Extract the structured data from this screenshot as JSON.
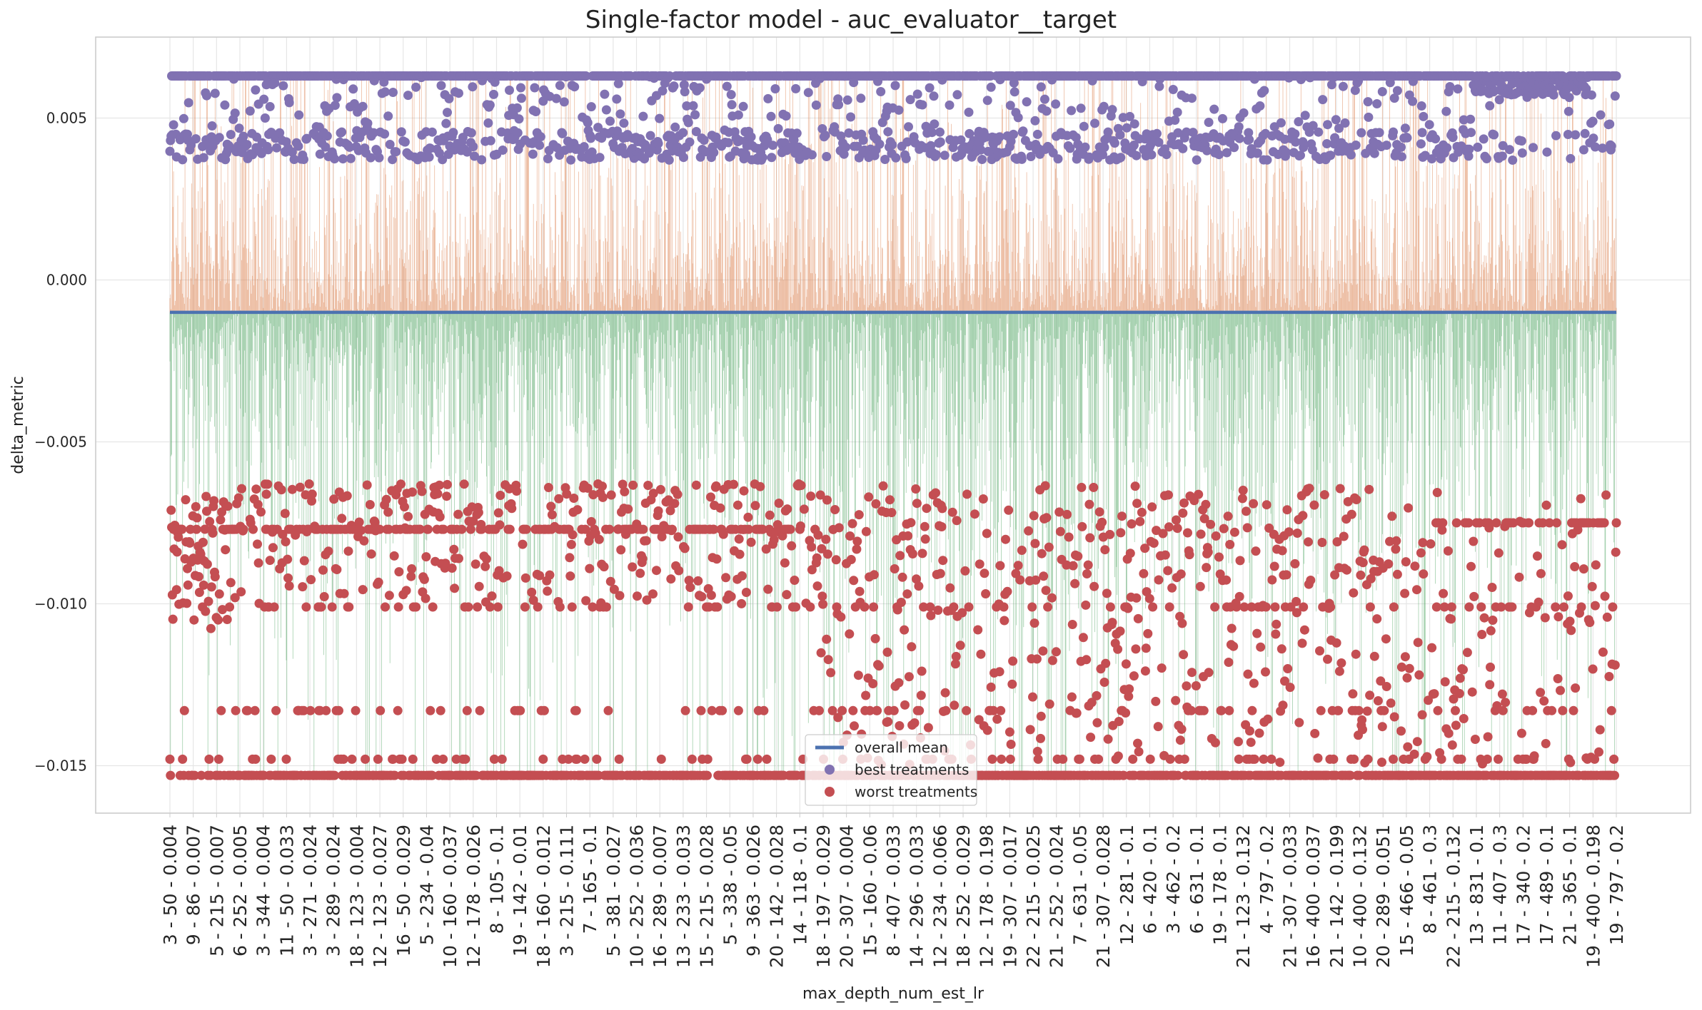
{
  "chart_data": {
    "type": "scatter",
    "title": "Single-factor model - auc_evaluator__target",
    "xlabel": "max_depth_num_est_lr",
    "ylabel": "delta_metric",
    "ylim": [
      -0.0165,
      0.0074
    ],
    "yticks": [
      0.005,
      0.0,
      -0.005,
      -0.01,
      -0.015
    ],
    "ytick_labels": [
      "0.005",
      "0.000",
      "−0.005",
      "−0.010",
      "−0.015"
    ],
    "grid": true,
    "legend_position": "bottom-center",
    "n_points": 2400,
    "xtick_labels": [
      "3 - 50 - 0.004",
      "9 - 86 - 0.007",
      "5 - 215 - 0.007",
      "6 - 252 - 0.005",
      "3 - 344 - 0.004",
      "11 - 50 - 0.033",
      "3 - 271 - 0.024",
      "3 - 289 - 0.024",
      "18 - 123 - 0.004",
      "12 - 123 - 0.027",
      "16 - 50 - 0.029",
      "5 - 234 - 0.04",
      "10 - 160 - 0.037",
      "12 - 178 - 0.026",
      "8 - 105 - 0.1",
      "19 - 142 - 0.01",
      "18 - 160 - 0.012",
      "3 - 215 - 0.111",
      "7 - 165 - 0.1",
      "5 - 381 - 0.027",
      "10 - 252 - 0.036",
      "16 - 289 - 0.007",
      "13 - 233 - 0.033",
      "15 - 215 - 0.028",
      "5 - 338 - 0.05",
      "9 - 363 - 0.026",
      "20 - 142 - 0.028",
      "14 - 118 - 0.1",
      "18 - 197 - 0.029",
      "20 - 307 - 0.004",
      "15 - 160 - 0.06",
      "8 - 407 - 0.033",
      "14 - 296 - 0.033",
      "12 - 234 - 0.066",
      "18 - 252 - 0.029",
      "12 - 178 - 0.198",
      "19 - 307 - 0.017",
      "22 - 215 - 0.025",
      "21 - 252 - 0.024",
      "7 - 631 - 0.05",
      "21 - 307 - 0.028",
      "12 - 281 - 0.1",
      "6 - 420 - 0.1",
      "3 - 462 - 0.2",
      "6 - 631 - 0.1",
      "19 - 178 - 0.1",
      "21 - 123 - 0.132",
      "4 - 797 - 0.2",
      "21 - 307 - 0.033",
      "16 - 400 - 0.037",
      "21 - 142 - 0.199",
      "10 - 400 - 0.132",
      "20 - 289 - 0.051",
      "15 - 466 - 0.05",
      "8 - 461 - 0.3",
      "22 - 215 - 0.132",
      "13 - 831 - 0.1",
      "11 - 407 - 0.3",
      "17 - 340 - 0.2",
      "17 - 489 - 0.1",
      "21 - 365 - 0.1",
      "19 - 400 - 0.198",
      "19 - 797 - 0.2"
    ],
    "series": [
      {
        "name": "overall mean",
        "kind": "line",
        "value": -0.001,
        "color": "#4c72b0"
      },
      {
        "name": "best treatments",
        "kind": "scatter",
        "color": "#8172b2",
        "max_value": 0.0063,
        "min_value": 0.0037
      },
      {
        "name": "worst treatments",
        "kind": "scatter",
        "color": "#c44e52",
        "max_value": -0.0063,
        "min_value": -0.0153,
        "typical_levels": [
          -0.0153,
          -0.0077,
          -0.0133,
          -0.0148,
          -0.0101,
          -0.0075
        ]
      }
    ],
    "stems": {
      "positive_color": "#dd8452",
      "negative_color": "#55a868",
      "baseline": -0.001
    }
  },
  "legend": {
    "mean_label": "overall mean",
    "best_label": "best treatments",
    "worst_label": "worst treatments"
  }
}
